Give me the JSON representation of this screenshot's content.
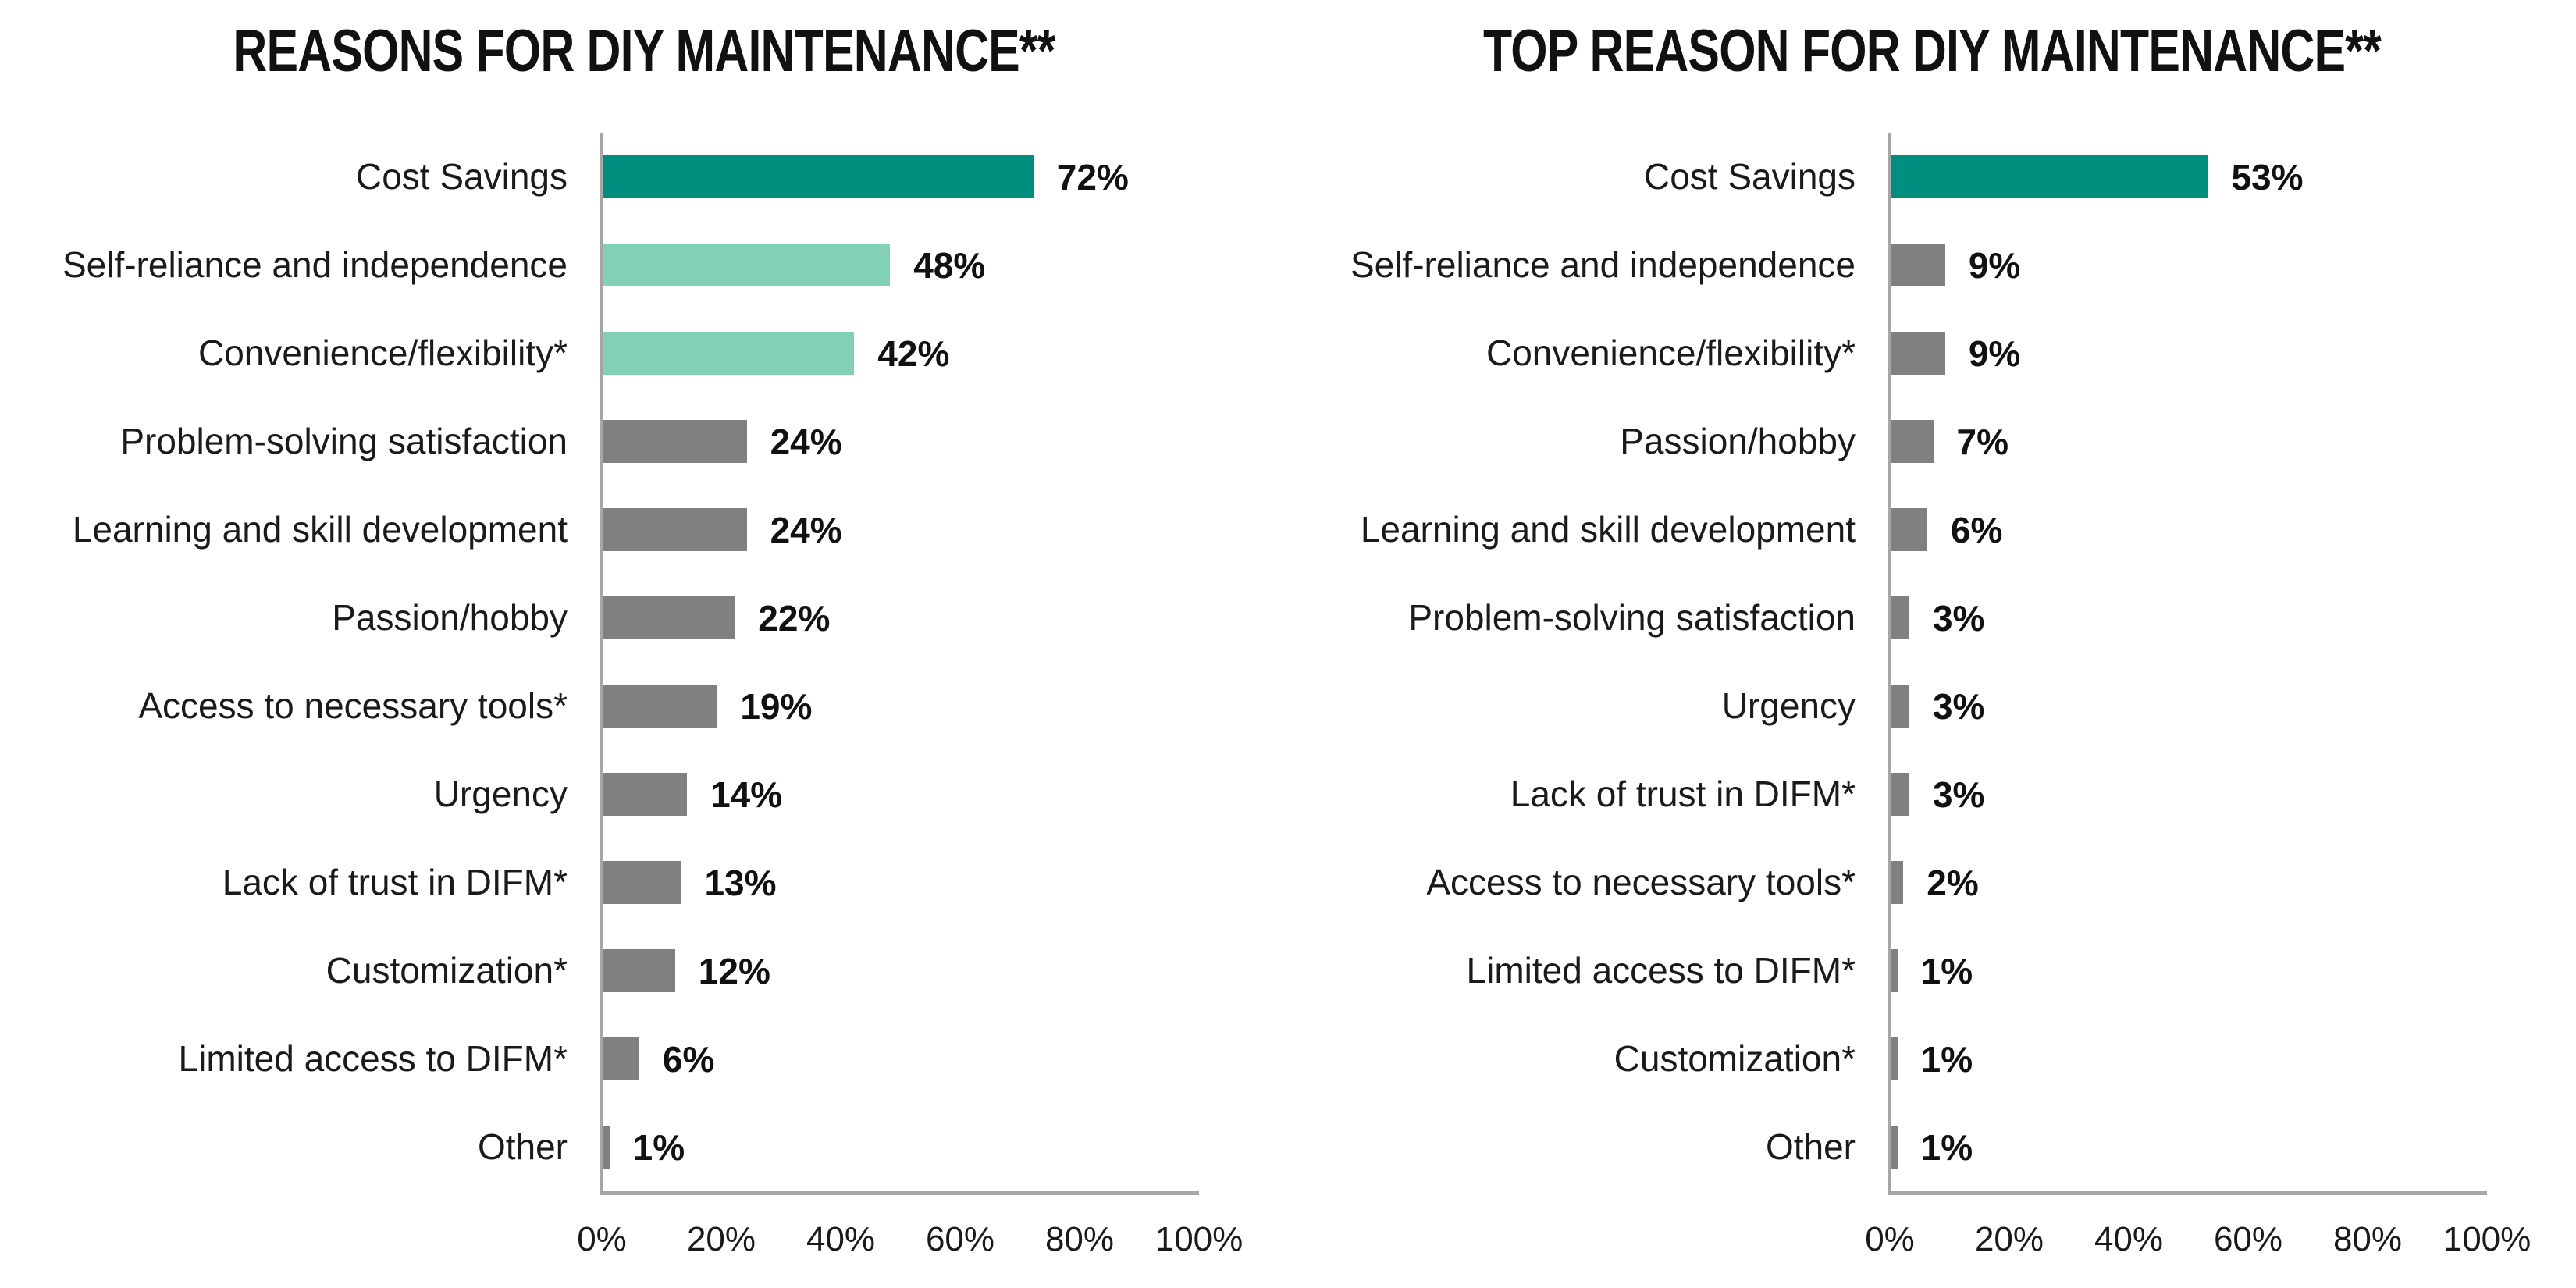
{
  "figure_background": "#ffffff",
  "colors": {
    "teal": "#008e7f",
    "mint": "#82d1b7",
    "gray": "#808080",
    "axis_line": "#a6a6a6",
    "title_text": "#111111",
    "label_text": "#1a1a1a"
  },
  "chart_data": [
    {
      "type": "bar",
      "orientation": "horizontal",
      "title": "REASONS FOR DIY MAINTENANCE**",
      "categories": [
        "Cost Savings",
        "Self-reliance and independence",
        "Convenience/flexibility*",
        "Problem-solving satisfaction",
        "Learning and skill development",
        "Passion/hobby",
        "Access to necessary tools*",
        "Urgency",
        "Lack of trust in DIFM*",
        "Customization*",
        "Limited access to DIFM*",
        "Other"
      ],
      "values": [
        72,
        48,
        42,
        24,
        24,
        22,
        19,
        14,
        13,
        12,
        6,
        1
      ],
      "data_labels": [
        "72%",
        "48%",
        "42%",
        "24%",
        "24%",
        "22%",
        "19%",
        "14%",
        "13%",
        "12%",
        "6%",
        "1%"
      ],
      "bar_colors": [
        "#008e7f",
        "#82d1b7",
        "#82d1b7",
        "#808080",
        "#808080",
        "#808080",
        "#808080",
        "#808080",
        "#808080",
        "#808080",
        "#808080",
        "#808080"
      ],
      "x_ticks": [
        "0%",
        "20%",
        "40%",
        "60%",
        "80%",
        "100%"
      ],
      "xlim": [
        0,
        100
      ],
      "xlabel": "",
      "ylabel": "",
      "grid": false,
      "legend": null
    },
    {
      "type": "bar",
      "orientation": "horizontal",
      "title": "TOP REASON FOR DIY MAINTENANCE**",
      "categories": [
        "Cost Savings",
        "Self-reliance and independence",
        "Convenience/flexibility*",
        "Passion/hobby",
        "Learning and skill development",
        "Problem-solving satisfaction",
        "Urgency",
        "Lack of trust in DIFM*",
        "Access to necessary tools*",
        "Limited access to DIFM*",
        "Customization*",
        "Other"
      ],
      "values": [
        53,
        9,
        9,
        7,
        6,
        3,
        3,
        3,
        2,
        1,
        1,
        1
      ],
      "data_labels": [
        "53%",
        "9%",
        "9%",
        "7%",
        "6%",
        "3%",
        "3%",
        "3%",
        "2%",
        "1%",
        "1%",
        "1%"
      ],
      "bar_colors": [
        "#008e7f",
        "#808080",
        "#808080",
        "#808080",
        "#808080",
        "#808080",
        "#808080",
        "#808080",
        "#808080",
        "#808080",
        "#808080",
        "#808080"
      ],
      "x_ticks": [
        "0%",
        "20%",
        "40%",
        "60%",
        "80%",
        "100%"
      ],
      "xlim": [
        0,
        100
      ],
      "xlabel": "",
      "ylabel": "",
      "grid": false,
      "legend": null
    }
  ]
}
